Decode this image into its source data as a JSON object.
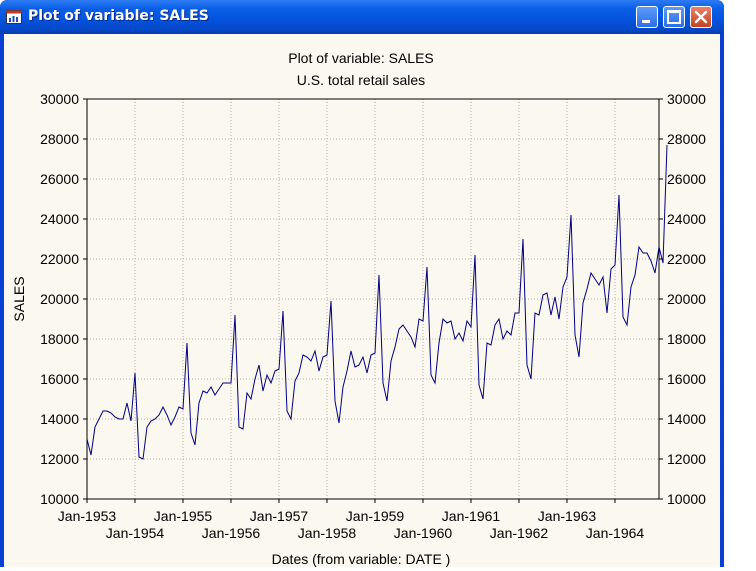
{
  "window": {
    "title": "Plot of variable: SALES"
  },
  "chart_data": {
    "type": "line",
    "title": "Plot of variable: SALES",
    "subtitle": "U.S. total retail sales",
    "xlabel": "Dates (from variable: DATE )",
    "ylabel": "SALES",
    "ylim": [
      10000,
      30000
    ],
    "yticks": [
      10000,
      12000,
      14000,
      16000,
      18000,
      20000,
      22000,
      24000,
      26000,
      28000,
      30000
    ],
    "xticks_upper": [
      "Jan-1953",
      "Jan-1955",
      "Jan-1957",
      "Jan-1959",
      "Jan-1961",
      "Jan-1963"
    ],
    "xticks_lower": [
      "Jan-1954",
      "Jan-1956",
      "Jan-1958",
      "Jan-1960",
      "Jan-1962",
      "Jan-1964"
    ],
    "x_start": "Jan-1953",
    "x_end": "Dec-1964",
    "grid": true,
    "series": [
      {
        "color": "#000080",
        "values": [
          13000,
          12200,
          13600,
          14000,
          14400,
          14400,
          14300,
          14100,
          14000,
          14000,
          14800,
          13900,
          16300,
          12100,
          12000,
          13600,
          13900,
          14000,
          14200,
          14600,
          14200,
          13700,
          14100,
          14600,
          14500,
          17800,
          13300,
          12700,
          14800,
          15400,
          15300,
          15600,
          15200,
          15500,
          15800,
          15800,
          15800,
          19200,
          13600,
          13500,
          15300,
          15000,
          16000,
          16700,
          15400,
          16200,
          15800,
          16400,
          16500,
          19400,
          14400,
          14000,
          15900,
          16300,
          17200,
          17100,
          16900,
          17400,
          16400,
          17100,
          17200,
          19900,
          14900,
          13800,
          15600,
          16400,
          17400,
          16600,
          16700,
          17100,
          16300,
          17200,
          17300,
          21200,
          15800,
          14900,
          16900,
          17600,
          18500,
          18700,
          18400,
          18100,
          17600,
          19000,
          18900,
          21600,
          16200,
          15800,
          17800,
          19000,
          18800,
          18900,
          18000,
          18300,
          17900,
          18900,
          18600,
          22200,
          15700,
          15000,
          17800,
          17700,
          18700,
          19000,
          18000,
          18400,
          18200,
          19300,
          19300,
          23000,
          16700,
          16000,
          19300,
          19200,
          20200,
          20300,
          19200,
          20100,
          19000,
          20600,
          21100,
          24200,
          18200,
          17100,
          19800,
          20500,
          21300,
          21000,
          20700,
          21100,
          19300,
          21500,
          21700,
          25200,
          19100,
          18700,
          20600,
          21200,
          22600,
          22300,
          22300,
          21900,
          21300,
          22600,
          21800,
          27700
        ]
      }
    ]
  }
}
